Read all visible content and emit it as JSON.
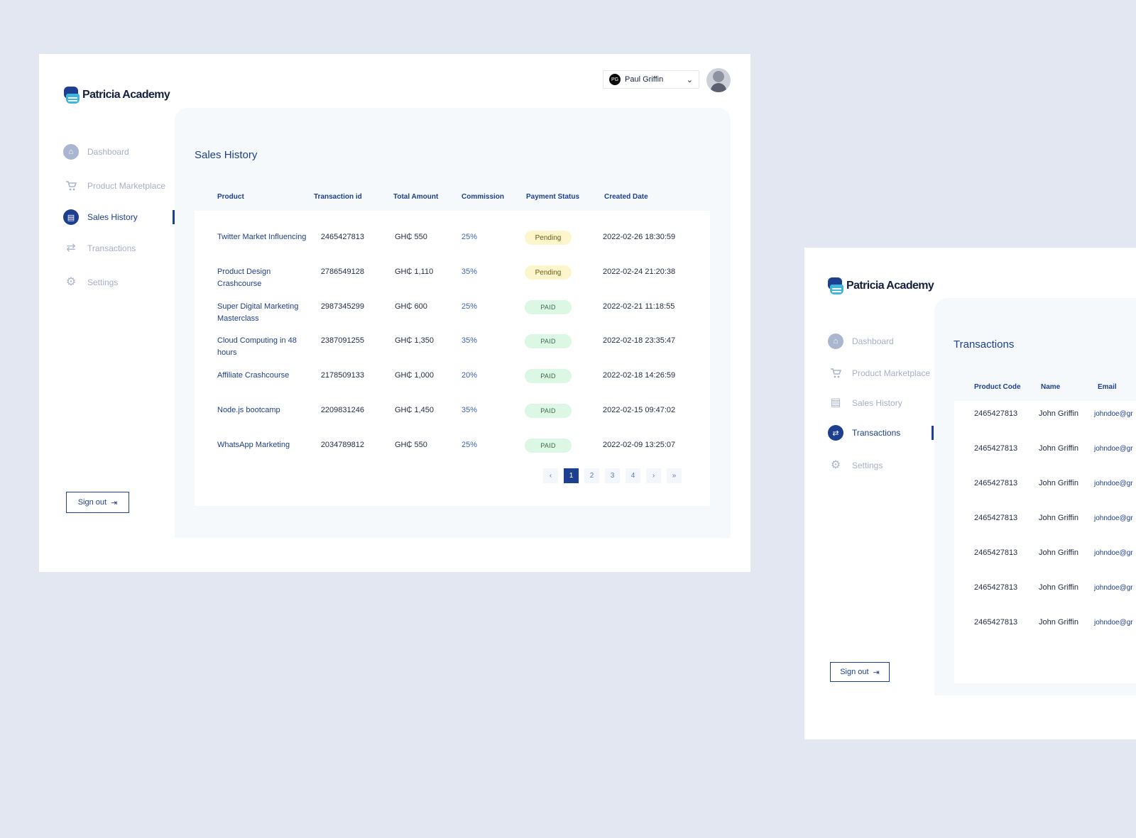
{
  "brand": {
    "name": "Patricia Academy"
  },
  "user": {
    "initials": "PG",
    "name": "Paul Griffin"
  },
  "nav": {
    "dashboard": "Dashboard",
    "marketplace": "Product Marketplace",
    "sales_history": "Sales History",
    "transactions": "Transactions",
    "settings": "Settings",
    "sign_out": "Sign out"
  },
  "sales": {
    "title": "Sales History",
    "columns": [
      "Product",
      "Transaction id",
      "Total Amount",
      "Commission",
      "Payment Status",
      "Created Date"
    ],
    "rows": [
      {
        "product": "Twitter Market Influencing",
        "tid": "2465427813",
        "amount": "GH₵ 550",
        "commission": "25%",
        "status": "Pending",
        "date": "2022-02-26 18:30:59"
      },
      {
        "product": "Product Design Crashcourse",
        "tid": "2786549128",
        "amount": "GH₵ 1,110",
        "commission": "35%",
        "status": "Pending",
        "date": "2022-02-24 21:20:38"
      },
      {
        "product": "Super Digital Marketing Masterclass",
        "tid": "2987345299",
        "amount": "GH₵ 600",
        "commission": "25%",
        "status": "PAID",
        "date": "2022-02-21 11:18:55"
      },
      {
        "product": "Cloud Computing in 48 hours",
        "tid": "2387091255",
        "amount": "GH₵ 1,350",
        "commission": "35%",
        "status": "PAID",
        "date": "2022-02-18 23:35:47"
      },
      {
        "product": "Affiliate Crashcourse",
        "tid": "2178509133",
        "amount": "GH₵ 1,000",
        "commission": "20%",
        "status": "PAID",
        "date": "2022-02-18 14:26:59"
      },
      {
        "product": "Node.js bootcamp",
        "tid": "2209831246",
        "amount": "GH₵ 1,450",
        "commission": "35%",
        "status": "PAID",
        "date": "2022-02-15 09:47:02"
      },
      {
        "product": "WhatsApp Marketing",
        "tid": "2034789812",
        "amount": "GH₵ 550",
        "commission": "25%",
        "status": "PAID",
        "date": "2022-02-09 13:25:07"
      }
    ],
    "pagination": {
      "pages": [
        "1",
        "2",
        "3",
        "4"
      ],
      "current": "1"
    }
  },
  "transactions": {
    "title": "Transactions",
    "columns": [
      "Product Code",
      "Name",
      "Email"
    ],
    "rows": [
      {
        "code": "2465427813",
        "name": "John Griffin",
        "email": "johndoe@gr"
      },
      {
        "code": "2465427813",
        "name": "John Griffin",
        "email": "johndoe@gr"
      },
      {
        "code": "2465427813",
        "name": "John Griffin",
        "email": "johndoe@gr"
      },
      {
        "code": "2465427813",
        "name": "John Griffin",
        "email": "johndoe@gr"
      },
      {
        "code": "2465427813",
        "name": "John Griffin",
        "email": "johndoe@gr"
      },
      {
        "code": "2465427813",
        "name": "John Griffin",
        "email": "johndoe@gr"
      },
      {
        "code": "2465427813",
        "name": "John Griffin",
        "email": "johndoe@gr"
      }
    ]
  }
}
